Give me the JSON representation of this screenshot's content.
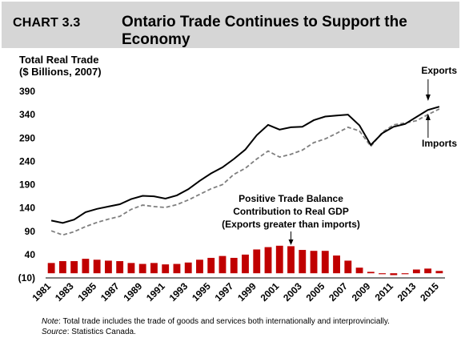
{
  "header": {
    "chart_number": "CHART 3.3",
    "title": "Ontario Trade Continues to Support the Economy"
  },
  "footer": {
    "note_label": "Note",
    "note_text": ": Total trade includes the trade of goods and services both internationally and interprovincially.",
    "source_label": "Source",
    "source_text": ": Statistics  Canada."
  },
  "colors": {
    "header_bg": "#d6d6d6",
    "bars": "#c00000",
    "exports_line": "#000000",
    "imports_line": "#7f7f7f"
  },
  "chart_data": {
    "type": "line",
    "title": "Ontario Trade Continues to Support the Economy",
    "ylabel_lines": [
      "Total Real Trade",
      "($ Billions, 2007)"
    ],
    "xlabel": "",
    "ylim": [
      -10,
      390
    ],
    "yticks": [
      "390",
      "340",
      "290",
      "240",
      "190",
      "140",
      "90",
      "40",
      "(10)"
    ],
    "ytick_values": [
      390,
      340,
      290,
      240,
      190,
      140,
      90,
      40,
      -10
    ],
    "x": [
      1981,
      1982,
      1983,
      1984,
      1985,
      1986,
      1987,
      1988,
      1989,
      1990,
      1991,
      1992,
      1993,
      1994,
      1995,
      1996,
      1997,
      1998,
      1999,
      2000,
      2001,
      2002,
      2003,
      2004,
      2005,
      2006,
      2007,
      2008,
      2009,
      2010,
      2011,
      2012,
      2013,
      2014,
      2015
    ],
    "xtick_labels": [
      "1981",
      "1983",
      "1985",
      "1987",
      "1989",
      "1991",
      "1993",
      "1995",
      "1997",
      "1999",
      "2001",
      "2003",
      "2005",
      "2007",
      "2009",
      "2011",
      "2013",
      "2015"
    ],
    "series": [
      {
        "name": "Exports",
        "style": "solid",
        "values": [
          113,
          108,
          115,
          131,
          138,
          143,
          148,
          159,
          166,
          165,
          160,
          167,
          180,
          198,
          214,
          227,
          245,
          265,
          296,
          318,
          308,
          313,
          314,
          328,
          336,
          338,
          340,
          317,
          275,
          300,
          314,
          320,
          335,
          350,
          357
        ]
      },
      {
        "name": "Imports",
        "style": "dashed",
        "values": [
          91,
          82,
          89,
          100,
          109,
          116,
          122,
          137,
          146,
          143,
          141,
          147,
          157,
          169,
          181,
          190,
          212,
          225,
          245,
          262,
          249,
          255,
          264,
          280,
          288,
          300,
          313,
          305,
          272,
          302,
          318,
          322,
          327,
          340,
          352
        ]
      },
      {
        "name": "Positive Trade Balance Contribution to Real GDP",
        "style": "bar",
        "values": [
          22,
          26,
          26,
          31,
          29,
          27,
          26,
          22,
          20,
          22,
          19,
          20,
          23,
          29,
          33,
          37,
          33,
          40,
          51,
          56,
          59,
          58,
          50,
          48,
          48,
          38,
          27,
          12,
          3,
          -2,
          -4,
          -2,
          8,
          10,
          5
        ]
      }
    ],
    "annotations": {
      "exports": "Exports",
      "imports": "Imports",
      "balance_lines": [
        "Positive Trade Balance",
        "Contribution to Real GDP",
        "(Exports greater than imports)"
      ]
    },
    "grid": false
  }
}
